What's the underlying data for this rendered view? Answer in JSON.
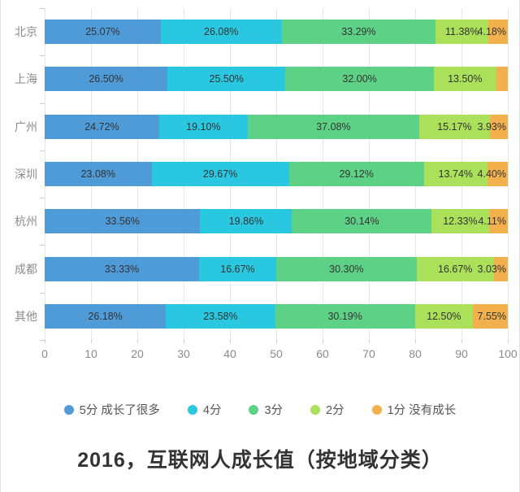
{
  "chart_data": {
    "type": "bar",
    "stacked": true,
    "orientation": "horizontal",
    "title": "2016，互联网人成长值（按地域分类）",
    "categories": [
      "北京",
      "上海",
      "广州",
      "深圳",
      "杭州",
      "成都",
      "其他"
    ],
    "series": [
      {
        "name": "5分 成长了很多",
        "color": "#4F9BD8",
        "values": [
          25.07,
          26.5,
          24.72,
          23.08,
          33.56,
          33.33,
          26.18
        ],
        "labels": [
          "25.07%",
          "26.50%",
          "24.72%",
          "23.08%",
          "33.56%",
          "33.33%",
          "26.18%"
        ]
      },
      {
        "name": "4分",
        "color": "#29C8E0",
        "values": [
          26.08,
          25.5,
          19.1,
          29.67,
          19.86,
          16.67,
          23.58
        ],
        "labels": [
          "26.08%",
          "25.50%",
          "19.10%",
          "29.67%",
          "19.86%",
          "16.67%",
          "23.58%"
        ]
      },
      {
        "name": "3分",
        "color": "#5DD186",
        "values": [
          33.29,
          32.0,
          37.08,
          29.12,
          30.14,
          30.3,
          30.19
        ],
        "labels": [
          "33.29%",
          "32.00%",
          "37.08%",
          "29.12%",
          "30.14%",
          "30.30%",
          "30.19%"
        ]
      },
      {
        "name": "2分",
        "color": "#AAE05A",
        "values": [
          11.38,
          13.5,
          15.17,
          13.74,
          12.33,
          16.67,
          12.5
        ],
        "labels": [
          "11.38%",
          "13.50%",
          "15.17%",
          "13.74%",
          "12.33%",
          "16.67%",
          "12.50%"
        ]
      },
      {
        "name": "1分 没有成长",
        "color": "#F2B14C",
        "values": [
          4.18,
          2.5,
          3.93,
          4.4,
          4.11,
          3.03,
          7.55
        ],
        "labels": [
          "4.18%",
          "",
          "3.93%",
          "4.40%",
          "4.11%",
          "3.03%",
          "7.55%"
        ]
      }
    ],
    "xlim": [
      0,
      100
    ],
    "x_ticks": [
      "0",
      "10",
      "20",
      "30",
      "40",
      "50",
      "60",
      "70",
      "80",
      "90",
      "100"
    ],
    "grid": true,
    "legend_position": "bottom",
    "label_color": "#333333",
    "axis_text_color": "#8b8b8b",
    "grid_color": "#e6e6e6",
    "axis_line_color": "#cccccc"
  }
}
